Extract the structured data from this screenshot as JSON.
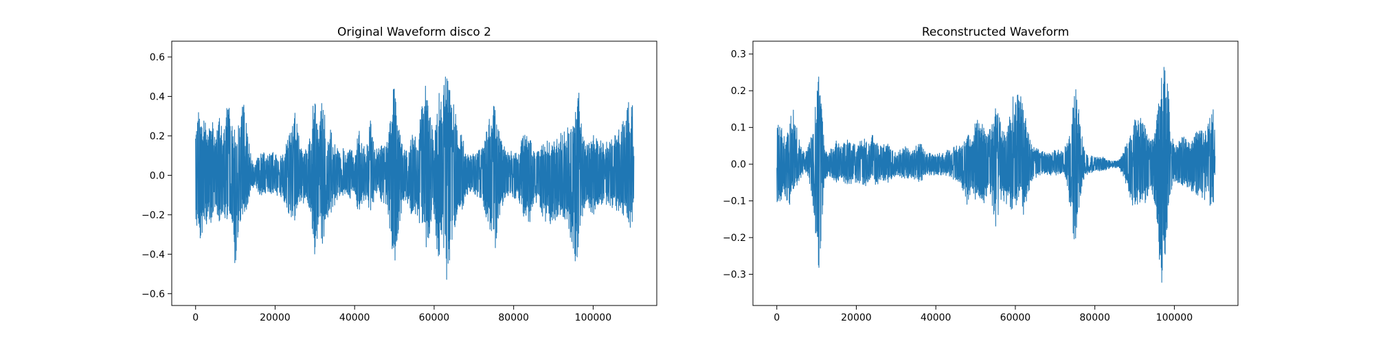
{
  "figure": {
    "background": "#ffffff"
  },
  "chart_data": [
    {
      "type": "line",
      "title": "Original Waveform disco 2",
      "xlabel": "",
      "ylabel": "",
      "xlim": [
        -6000,
        116000
      ],
      "ylim": [
        -0.66,
        0.68
      ],
      "xticks": [
        0,
        20000,
        40000,
        60000,
        80000,
        100000
      ],
      "xtick_labels": [
        "0",
        "20000",
        "40000",
        "60000",
        "80000",
        "100000"
      ],
      "yticks": [
        -0.6,
        -0.4,
        -0.2,
        0.0,
        0.2,
        0.4,
        0.6
      ],
      "ytick_labels": [
        "−0.6",
        "−0.4",
        "−0.2",
        "0.0",
        "0.2",
        "0.4",
        "0.6"
      ],
      "grid": false,
      "series": [
        {
          "color": "#1f77b4",
          "x_range": [
            0,
            110250
          ],
          "envelope": {
            "x": [
              0,
              1000,
              2000,
              3000,
              4000,
              5000,
              6000,
              7000,
              8000,
              9000,
              10000,
              11000,
              12000,
              13000,
              14000,
              15000,
              16000,
              17000,
              18000,
              20000,
              22000,
              24000,
              25000,
              26000,
              27000,
              28000,
              29000,
              30000,
              31000,
              32000,
              33000,
              34000,
              35000,
              36000,
              37000,
              38000,
              39000,
              40000,
              41000,
              42000,
              43000,
              44000,
              45000,
              46000,
              48000,
              49000,
              50000,
              51000,
              52000,
              53000,
              54000,
              55000,
              56000,
              57000,
              58000,
              59000,
              60000,
              61000,
              62000,
              63000,
              64000,
              65000,
              66000,
              67000,
              68000,
              70000,
              72000,
              74000,
              75000,
              76000,
              77000,
              78000,
              80000,
              81000,
              82000,
              84000,
              86000,
              88000,
              90000,
              92000,
              94000,
              95000,
              96000,
              97000,
              98000,
              100000,
              102000,
              104000,
              106000,
              108000,
              109000,
              110000,
              110250
            ],
            "upper": [
              0.22,
              0.37,
              0.3,
              0.25,
              0.3,
              0.2,
              0.35,
              0.2,
              0.41,
              0.28,
              0.22,
              0.32,
              0.38,
              0.24,
              0.1,
              0.06,
              0.11,
              0.12,
              0.1,
              0.13,
              0.11,
              0.25,
              0.33,
              0.2,
              0.12,
              0.14,
              0.25,
              0.49,
              0.2,
              0.47,
              0.22,
              0.24,
              0.2,
              0.12,
              0.14,
              0.11,
              0.15,
              0.08,
              0.25,
              0.14,
              0.16,
              0.28,
              0.13,
              0.14,
              0.17,
              0.35,
              0.47,
              0.26,
              0.16,
              0.12,
              0.21,
              0.22,
              0.21,
              0.4,
              0.48,
              0.3,
              0.2,
              0.45,
              0.4,
              0.62,
              0.45,
              0.38,
              0.22,
              0.22,
              0.1,
              0.12,
              0.15,
              0.3,
              0.38,
              0.25,
              0.2,
              0.12,
              0.15,
              0.1,
              0.21,
              0.2,
              0.12,
              0.18,
              0.17,
              0.22,
              0.26,
              0.25,
              0.52,
              0.28,
              0.15,
              0.21,
              0.18,
              0.17,
              0.25,
              0.3,
              0.38,
              0.38,
              0.1
            ],
            "lower": [
              -0.26,
              -0.35,
              -0.27,
              -0.24,
              -0.25,
              -0.22,
              -0.24,
              -0.21,
              -0.27,
              -0.2,
              -0.54,
              -0.25,
              -0.2,
              -0.17,
              -0.08,
              -0.05,
              -0.1,
              -0.1,
              -0.09,
              -0.1,
              -0.12,
              -0.25,
              -0.23,
              -0.16,
              -0.15,
              -0.13,
              -0.2,
              -0.42,
              -0.28,
              -0.36,
              -0.22,
              -0.2,
              -0.16,
              -0.1,
              -0.12,
              -0.1,
              -0.13,
              -0.07,
              -0.23,
              -0.13,
              -0.14,
              -0.2,
              -0.12,
              -0.13,
              -0.15,
              -0.32,
              -0.47,
              -0.3,
              -0.16,
              -0.12,
              -0.2,
              -0.22,
              -0.22,
              -0.3,
              -0.4,
              -0.28,
              -0.2,
              -0.46,
              -0.3,
              -0.56,
              -0.42,
              -0.3,
              -0.2,
              -0.18,
              -0.1,
              -0.1,
              -0.12,
              -0.3,
              -0.46,
              -0.25,
              -0.18,
              -0.12,
              -0.14,
              -0.1,
              -0.2,
              -0.25,
              -0.14,
              -0.25,
              -0.25,
              -0.2,
              -0.28,
              -0.43,
              -0.44,
              -0.25,
              -0.15,
              -0.2,
              -0.16,
              -0.15,
              -0.2,
              -0.24,
              -0.27,
              -0.27,
              -0.08
            ]
          }
        }
      ]
    },
    {
      "type": "line",
      "title": "Reconstructed Waveform",
      "xlabel": "",
      "ylabel": "",
      "xlim": [
        -6000,
        116000
      ],
      "ylim": [
        -0.385,
        0.335
      ],
      "xticks": [
        0,
        20000,
        40000,
        60000,
        80000,
        100000
      ],
      "xtick_labels": [
        "0",
        "20000",
        "40000",
        "60000",
        "80000",
        "100000"
      ],
      "yticks": [
        -0.3,
        -0.2,
        -0.1,
        0.0,
        0.1,
        0.2,
        0.3
      ],
      "ytick_labels": [
        "−0.3",
        "−0.2",
        "−0.1",
        "0.0",
        "0.1",
        "0.2",
        "0.3"
      ],
      "grid": false,
      "series": [
        {
          "color": "#1f77b4",
          "x_range": [
            0,
            110250
          ],
          "envelope": {
            "x": [
              0,
              1000,
              2000,
              3000,
              4000,
              5000,
              6000,
              7000,
              8000,
              9000,
              10000,
              10500,
              11000,
              11500,
              12000,
              13000,
              14000,
              15000,
              16000,
              18000,
              20000,
              22000,
              23000,
              24000,
              25000,
              26000,
              28000,
              30000,
              32000,
              34000,
              36000,
              38000,
              40000,
              42000,
              44000,
              46000,
              47000,
              48000,
              49000,
              50000,
              51000,
              52000,
              53000,
              54000,
              55000,
              56000,
              57000,
              58000,
              59000,
              60000,
              61000,
              62000,
              64000,
              66000,
              68000,
              70000,
              72000,
              73000,
              74000,
              75000,
              76000,
              77000,
              78000,
              80000,
              82000,
              84000,
              86000,
              87000,
              88000,
              89000,
              90000,
              91000,
              92000,
              93000,
              94000,
              95000,
              96000,
              97000,
              98000,
              99000,
              100000,
              102000,
              104000,
              106000,
              108000,
              109000,
              110000,
              110250
            ],
            "upper": [
              0.12,
              0.11,
              0.07,
              0.1,
              0.16,
              0.1,
              0.05,
              0.03,
              0.05,
              0.1,
              0.2,
              0.27,
              0.28,
              0.2,
              0.05,
              0.03,
              0.05,
              0.07,
              0.05,
              0.07,
              0.05,
              0.08,
              0.05,
              0.09,
              0.06,
              0.05,
              0.06,
              0.03,
              0.05,
              0.04,
              0.06,
              0.03,
              0.03,
              0.03,
              0.05,
              0.05,
              0.07,
              0.09,
              0.06,
              0.12,
              0.15,
              0.1,
              0.08,
              0.11,
              0.16,
              0.13,
              0.1,
              0.1,
              0.18,
              0.2,
              0.2,
              0.17,
              0.06,
              0.04,
              0.03,
              0.04,
              0.04,
              0.06,
              0.1,
              0.23,
              0.15,
              0.06,
              0.03,
              0.02,
              0.02,
              0.01,
              0.01,
              0.03,
              0.06,
              0.09,
              0.14,
              0.13,
              0.12,
              0.1,
              0.07,
              0.08,
              0.18,
              0.25,
              0.3,
              0.1,
              0.05,
              0.08,
              0.06,
              0.1,
              0.09,
              0.15,
              0.15,
              0.04
            ],
            "lower": [
              -0.12,
              -0.1,
              -0.09,
              -0.12,
              -0.08,
              -0.06,
              -0.04,
              -0.02,
              -0.04,
              -0.12,
              -0.23,
              -0.32,
              -0.25,
              -0.15,
              -0.05,
              -0.03,
              -0.04,
              -0.05,
              -0.04,
              -0.06,
              -0.05,
              -0.06,
              -0.06,
              -0.04,
              -0.06,
              -0.05,
              -0.05,
              -0.03,
              -0.04,
              -0.04,
              -0.05,
              -0.03,
              -0.03,
              -0.03,
              -0.04,
              -0.05,
              -0.08,
              -0.12,
              -0.06,
              -0.1,
              -0.09,
              -0.12,
              -0.08,
              -0.1,
              -0.18,
              -0.12,
              -0.1,
              -0.12,
              -0.14,
              -0.13,
              -0.08,
              -0.14,
              -0.05,
              -0.03,
              -0.03,
              -0.03,
              -0.03,
              -0.06,
              -0.15,
              -0.23,
              -0.12,
              -0.05,
              -0.03,
              -0.02,
              -0.02,
              -0.01,
              -0.01,
              -0.03,
              -0.06,
              -0.13,
              -0.12,
              -0.11,
              -0.12,
              -0.1,
              -0.06,
              -0.12,
              -0.24,
              -0.35,
              -0.2,
              -0.08,
              -0.05,
              -0.06,
              -0.07,
              -0.09,
              -0.1,
              -0.12,
              -0.1,
              -0.03
            ]
          }
        }
      ]
    }
  ]
}
